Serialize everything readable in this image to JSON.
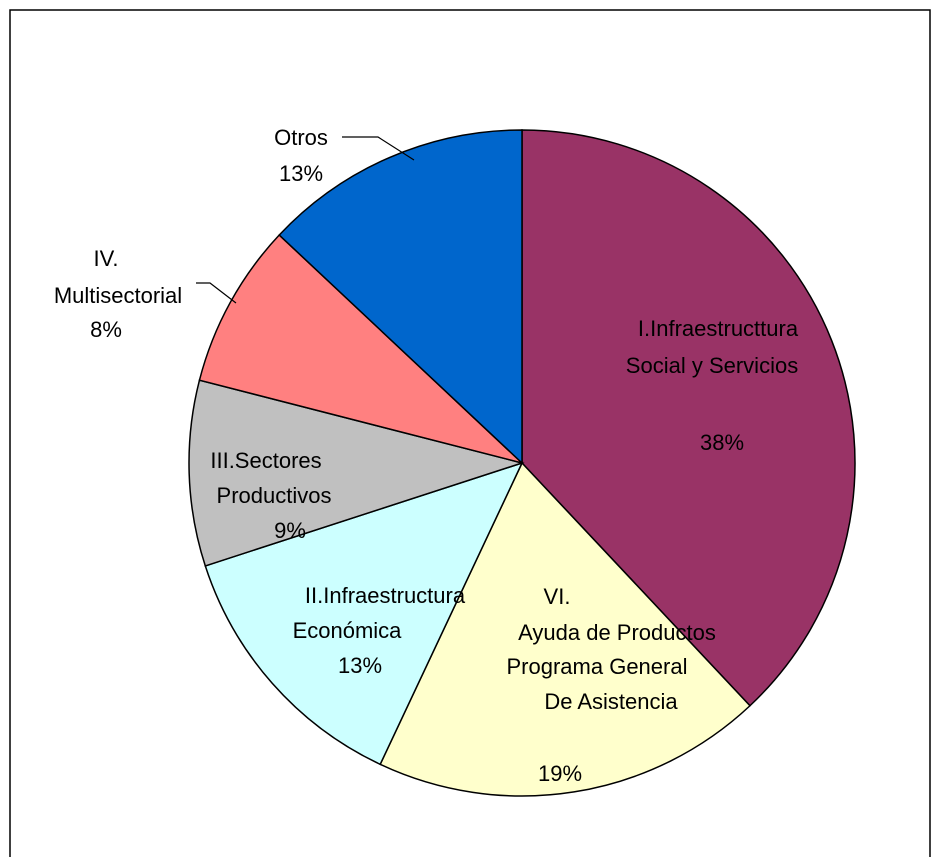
{
  "chart_data": {
    "type": "pie",
    "categories": [
      [
        "I.Infraestructtura",
        "Social y Servicios"
      ],
      [
        "VI.",
        "Ayuda de Productos",
        "Programa General",
        "De Asistencia"
      ],
      [
        "II.Infraestructura",
        "Económica"
      ],
      [
        "III.Sectores",
        "Productivos"
      ],
      [
        "IV.",
        "Multisectorial"
      ],
      [
        "Otros"
      ]
    ],
    "values": [
      38,
      19,
      13,
      9,
      8,
      13
    ],
    "value_labels": [
      "38%",
      "19%",
      "13%",
      "9%",
      "8%",
      "13%"
    ],
    "colors": [
      "#993366",
      "#ffffcc",
      "#ccffff",
      "#c0c0c0",
      "#ff8080",
      "#0066cc"
    ]
  }
}
